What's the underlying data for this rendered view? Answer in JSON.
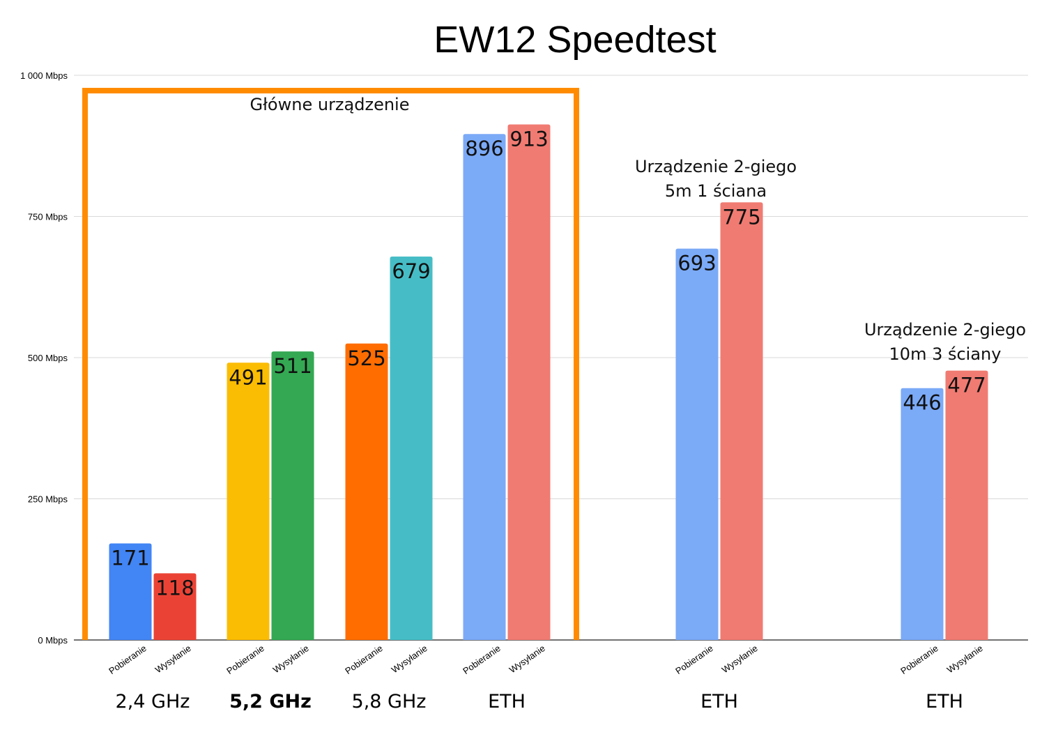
{
  "chart_data": {
    "type": "bar",
    "title": "EW12 Speedtest",
    "xlabel": "",
    "ylabel": "",
    "ylim": [
      0,
      1000
    ],
    "y_ticks": [
      {
        "value": 0,
        "label": "0 Mbps"
      },
      {
        "value": 250,
        "label": "250 Mbps"
      },
      {
        "value": 500,
        "label": "500 Mbps"
      },
      {
        "value": 750,
        "label": "750 Mbps"
      },
      {
        "value": 1000,
        "label": "1 000 Mbps"
      }
    ],
    "grid": true,
    "groups": [
      {
        "label": "2,4 GHz",
        "bold": false,
        "bars": [
          {
            "category": "Pobieranie",
            "value": 171,
            "label": "171",
            "color": "#4285f4"
          },
          {
            "category": "Wysyłanie",
            "value": 118,
            "label": "118",
            "color": "#ea4335"
          }
        ]
      },
      {
        "label": "5,2 GHz",
        "bold": true,
        "bars": [
          {
            "category": "Pobieranie",
            "value": 491,
            "label": "491",
            "color": "#fbbc04"
          },
          {
            "category": "Wysyłanie",
            "value": 511,
            "label": "511",
            "color": "#34a853"
          }
        ]
      },
      {
        "label": "5,8 GHz",
        "bold": false,
        "bars": [
          {
            "category": "Pobieranie",
            "value": 525,
            "label": "525",
            "color": "#ff6d01"
          },
          {
            "category": "Wysyłanie",
            "value": 679,
            "label": "679",
            "color": "#46bdc6"
          }
        ]
      },
      {
        "label": "ETH",
        "bold": false,
        "bars": [
          {
            "category": "Pobieranie",
            "value": 896,
            "label": "896",
            "color": "#7baaf7"
          },
          {
            "category": "Wysyłanie",
            "value": 913,
            "label": "913",
            "color": "#f07b72"
          }
        ]
      },
      {
        "label": "ETH",
        "bold": false,
        "bars": [
          {
            "category": "Pobieranie",
            "value": 693,
            "label": "693",
            "color": "#7baaf7"
          },
          {
            "category": "Wysyłanie",
            "value": 775,
            "label": "775",
            "color": "#f07b72"
          }
        ]
      },
      {
        "label": "ETH",
        "bold": false,
        "bars": [
          {
            "category": "Pobieranie",
            "value": 446,
            "label": "446",
            "color": "#7baaf7"
          },
          {
            "category": "Wysyłanie",
            "value": 477,
            "label": "477",
            "color": "#f07b72"
          }
        ]
      }
    ],
    "annotations": [
      {
        "lines": [
          "Główne urządzenie"
        ]
      },
      {
        "lines": [
          "Urządzenie 2-giego",
          "5m 1 ściana"
        ]
      },
      {
        "lines": [
          "Urządzenie 2-giego",
          "10m 3 ściany"
        ]
      }
    ],
    "highlight_box_color": "#ff8c00"
  }
}
